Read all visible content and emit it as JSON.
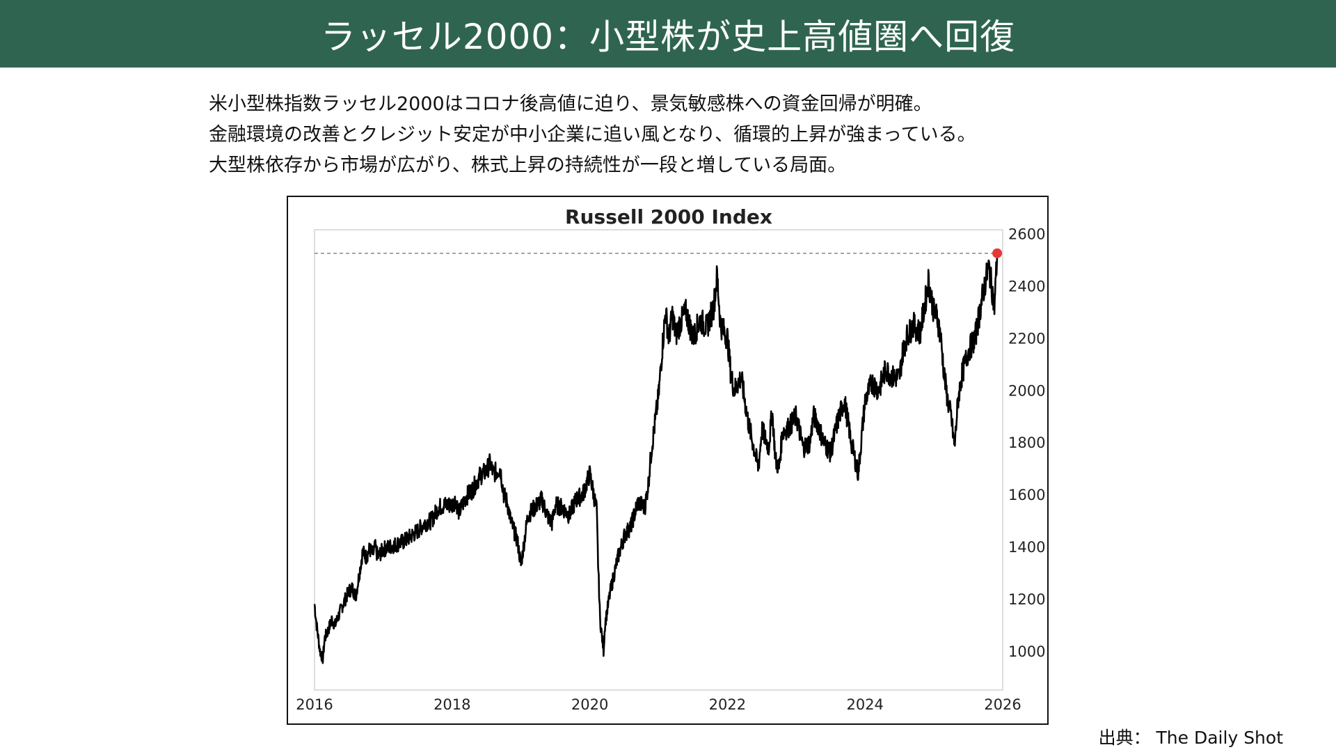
{
  "header": {
    "title": "ラッセル2000：小型株が史上高値圏へ回復"
  },
  "description": [
    "米小型株指数ラッセル2000はコロナ後高値に迫り、景気敏感株への資金回帰が明確。",
    "金融環境の改善とクレジット安定が中小企業に追い風となり、循環的上昇が強まっている。",
    "大型株依存から市場が広がり、株式上昇の持続性が一段と増している局面。"
  ],
  "source": "出典： The Daily Shot",
  "colors": {
    "header_bg": "#2f6550",
    "line": "#000000",
    "highlight_dot": "#e53935",
    "reference_line": "#888888"
  },
  "chart_data": {
    "type": "line",
    "title": "Russell 2000 Index",
    "xlabel": "",
    "ylabel": "",
    "x_ticks": [
      "2016",
      "2018",
      "2020",
      "2022",
      "2024",
      "2026"
    ],
    "y_ticks": [
      "1000",
      "1200",
      "1400",
      "1600",
      "1800",
      "2000",
      "2200",
      "2400",
      "2600"
    ],
    "xlim": [
      2016,
      2026
    ],
    "ylim": [
      850,
      2615
    ],
    "y_axis_side": "right",
    "reference_line": {
      "y": 2525,
      "style": "dashed"
    },
    "highlight_point": {
      "x": 2025.92,
      "y": 2525
    },
    "series": [
      {
        "x": [
          2016.0,
          2016.03,
          2016.08,
          2016.12,
          2016.15,
          2016.2,
          2016.25,
          2016.3,
          2016.4,
          2016.45,
          2016.5,
          2016.55,
          2016.6,
          2016.7,
          2016.75,
          2016.8,
          2016.85,
          2016.88,
          2016.92,
          2017.0,
          2017.1,
          2017.2,
          2017.3,
          2017.4,
          2017.5,
          2017.6,
          2017.7,
          2017.8,
          2017.9,
          2018.0,
          2018.05,
          2018.1,
          2018.2,
          2018.3,
          2018.4,
          2018.5,
          2018.55,
          2018.6,
          2018.7,
          2018.75,
          2018.8,
          2018.85,
          2018.95,
          2019.0,
          2019.1,
          2019.2,
          2019.3,
          2019.4,
          2019.45,
          2019.5,
          2019.6,
          2019.7,
          2019.8,
          2019.9,
          2020.0,
          2020.1,
          2020.12,
          2020.15,
          2020.2,
          2020.22,
          2020.3,
          2020.4,
          2020.5,
          2020.6,
          2020.7,
          2020.8,
          2020.85,
          2020.9,
          2021.0,
          2021.05,
          2021.1,
          2021.15,
          2021.2,
          2021.25,
          2021.3,
          2021.4,
          2021.5,
          2021.6,
          2021.7,
          2021.8,
          2021.85,
          2021.9,
          2022.0,
          2022.05,
          2022.1,
          2022.2,
          2022.3,
          2022.4,
          2022.45,
          2022.5,
          2022.6,
          2022.65,
          2022.7,
          2022.75,
          2022.8,
          2022.9,
          2023.0,
          2023.1,
          2023.2,
          2023.25,
          2023.3,
          2023.4,
          2023.5,
          2023.6,
          2023.7,
          2023.8,
          2023.85,
          2023.9,
          2024.0,
          2024.1,
          2024.2,
          2024.3,
          2024.4,
          2024.5,
          2024.55,
          2024.6,
          2024.7,
          2024.8,
          2024.9,
          2024.92,
          2025.0,
          2025.05,
          2025.1,
          2025.15,
          2025.2,
          2025.25,
          2025.3,
          2025.35,
          2025.4,
          2025.5,
          2025.6,
          2025.7,
          2025.75,
          2025.8,
          2025.85,
          2025.88,
          2025.92
        ],
        "values": [
          1180,
          1100,
          1000,
          970,
          1050,
          1080,
          1120,
          1100,
          1170,
          1200,
          1230,
          1240,
          1210,
          1380,
          1360,
          1390,
          1370,
          1400,
          1360,
          1390,
          1400,
          1410,
          1420,
          1440,
          1460,
          1490,
          1500,
          1550,
          1560,
          1560,
          1580,
          1530,
          1590,
          1620,
          1670,
          1690,
          1720,
          1680,
          1700,
          1600,
          1570,
          1500,
          1420,
          1330,
          1520,
          1550,
          1580,
          1510,
          1490,
          1560,
          1550,
          1520,
          1580,
          1600,
          1680,
          1540,
          1340,
          1120,
          1000,
          1100,
          1230,
          1350,
          1440,
          1480,
          1570,
          1550,
          1640,
          1780,
          1980,
          2150,
          2300,
          2200,
          2290,
          2210,
          2250,
          2300,
          2200,
          2270,
          2240,
          2320,
          2440,
          2250,
          2200,
          2060,
          2000,
          2050,
          1880,
          1760,
          1700,
          1850,
          1780,
          1920,
          1730,
          1700,
          1840,
          1860,
          1900,
          1780,
          1800,
          1900,
          1880,
          1800,
          1760,
          1880,
          1960,
          1800,
          1740,
          1680,
          1960,
          2030,
          2000,
          2080,
          2050,
          2050,
          2150,
          2200,
          2250,
          2220,
          2380,
          2420,
          2300,
          2280,
          2200,
          2060,
          1960,
          1900,
          1780,
          1960,
          2050,
          2150,
          2200,
          2350,
          2420,
          2470,
          2380,
          2320,
          2525
        ]
      }
    ]
  }
}
